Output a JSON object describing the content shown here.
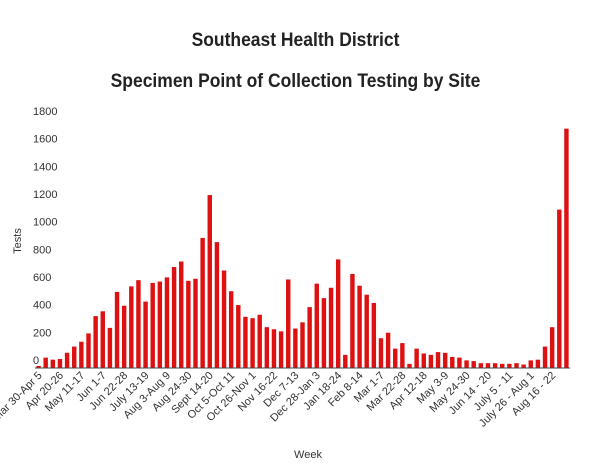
{
  "chart_data": {
    "type": "bar",
    "title": "Southeast Health District",
    "subtitle": "Specimen Point of Collection Testing by Site",
    "xlabel": "Week",
    "ylabel": "Tests",
    "ylim": [
      0,
      1800
    ],
    "yticks": [
      0,
      200,
      400,
      600,
      800,
      1000,
      1200,
      1400,
      1600,
      1800
    ],
    "grid": false,
    "bar_color": "#dd1111",
    "tick_labels": [
      {
        "index": 0,
        "label": "Mar 30-Apr 5"
      },
      {
        "index": 3,
        "label": "Apr 20-26"
      },
      {
        "index": 6,
        "label": "May 11-17"
      },
      {
        "index": 9,
        "label": "Jun 1-7"
      },
      {
        "index": 12,
        "label": "Jun 22-28"
      },
      {
        "index": 15,
        "label": "July 13-19"
      },
      {
        "index": 18,
        "label": "Aug 3-Aug 9"
      },
      {
        "index": 21,
        "label": "Aug 24-30"
      },
      {
        "index": 24,
        "label": "Sept 14-20"
      },
      {
        "index": 27,
        "label": "Oct 5-Oct 11"
      },
      {
        "index": 30,
        "label": "Oct 26-Nov 1"
      },
      {
        "index": 33,
        "label": "Nov 16-22"
      },
      {
        "index": 36,
        "label": "Dec 7-13"
      },
      {
        "index": 39,
        "label": "Dec 28-Jan 3"
      },
      {
        "index": 42,
        "label": "Jan 18-24"
      },
      {
        "index": 45,
        "label": "Feb 8-14"
      },
      {
        "index": 48,
        "label": "Mar 1-7"
      },
      {
        "index": 51,
        "label": "Mar 22-28"
      },
      {
        "index": 54,
        "label": "Apr 12-18"
      },
      {
        "index": 57,
        "label": "May 3-9"
      },
      {
        "index": 60,
        "label": "May 24-30"
      },
      {
        "index": 63,
        "label": "Jun 14 - 20"
      },
      {
        "index": 66,
        "label": "July 5 - 11"
      },
      {
        "index": 69,
        "label": "July 26 - Aug 1"
      },
      {
        "index": 72,
        "label": "Aug 16 - 22"
      }
    ],
    "values": [
      15,
      75,
      60,
      65,
      110,
      155,
      190,
      250,
      375,
      410,
      290,
      550,
      450,
      590,
      635,
      480,
      615,
      625,
      655,
      730,
      770,
      630,
      645,
      940,
      1250,
      910,
      705,
      555,
      455,
      370,
      360,
      385,
      295,
      280,
      265,
      640,
      285,
      330,
      440,
      610,
      505,
      580,
      785,
      95,
      680,
      595,
      530,
      470,
      215,
      255,
      140,
      180,
      30,
      140,
      105,
      95,
      115,
      110,
      80,
      75,
      55,
      50,
      35,
      35,
      35,
      30,
      30,
      35,
      25,
      55,
      60,
      155,
      295,
      1145,
      1730
    ]
  }
}
